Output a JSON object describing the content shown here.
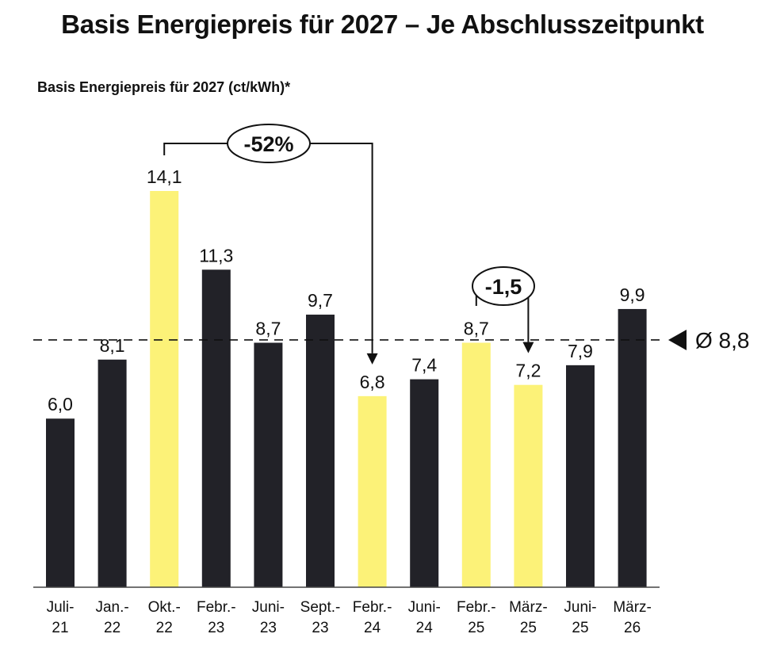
{
  "title": "Basis Energiepreis für 2027 – Je Abschlusszeitpunkt",
  "subtitle": "Basis Energiepreis für 2027 (ct/kWh)*",
  "colors": {
    "dark": "#222228",
    "highlight": "#FCF278"
  },
  "chart_data": {
    "type": "bar",
    "title": "Basis Energiepreis für 2027 – Je Abschlusszeitpunkt",
    "ylabel": "Basis Energiepreis für 2027 (ct/kWh)*",
    "categories": [
      "Juli-21",
      "Jan.-22",
      "Okt.-22",
      "Febr.-23",
      "Juni-23",
      "Sept.-23",
      "Febr.-24",
      "Juni-24",
      "Febr.-25",
      "März-25",
      "Juni-25",
      "März-26"
    ],
    "category_lines": [
      [
        "Juli-",
        "21"
      ],
      [
        "Jan.-",
        "22"
      ],
      [
        "Okt.-",
        "22"
      ],
      [
        "Febr.-",
        "23"
      ],
      [
        "Juni-",
        "23"
      ],
      [
        "Sept.-",
        "23"
      ],
      [
        "Febr.-",
        "24"
      ],
      [
        "Juni-",
        "24"
      ],
      [
        "Febr.-",
        "25"
      ],
      [
        "März-",
        "25"
      ],
      [
        "Juni-",
        "25"
      ],
      [
        "März-",
        "26"
      ]
    ],
    "values": [
      6.0,
      8.1,
      14.1,
      11.3,
      8.7,
      9.7,
      6.8,
      7.4,
      8.7,
      7.2,
      7.9,
      9.9
    ],
    "value_labels": [
      "6,0",
      "8,1",
      "14,1",
      "11,3",
      "8,7",
      "9,7",
      "6,8",
      "7,4",
      "8,7",
      "7,2",
      "7,9",
      "9,9"
    ],
    "highlighted": [
      false,
      false,
      true,
      false,
      false,
      false,
      true,
      false,
      true,
      true,
      false,
      false
    ],
    "ylim": [
      0,
      14.1
    ],
    "grid": false,
    "average": {
      "value": 8.8,
      "label": "Ø 8,8"
    },
    "annotations": [
      {
        "text": "-52%",
        "from": "Okt.-22",
        "to": "Febr.-24"
      },
      {
        "text": "-1,5",
        "from": "Febr.-25",
        "to": "März-25"
      }
    ]
  }
}
